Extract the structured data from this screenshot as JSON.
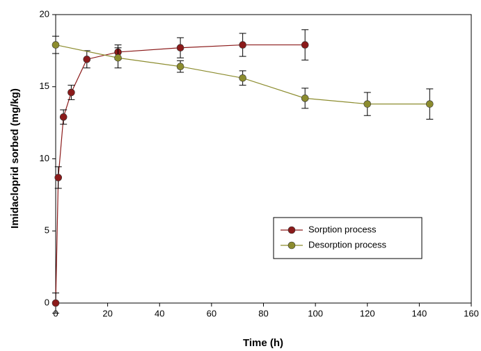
{
  "chart_data": {
    "type": "line",
    "x_label": "Time (h)",
    "y_label": "Imidacloprid sorbed (mg/kg)",
    "xlim": [
      0,
      160
    ],
    "ylim": [
      0,
      20
    ],
    "xticks": [
      0,
      20,
      40,
      60,
      80,
      100,
      120,
      140,
      160
    ],
    "yticks": [
      0,
      5,
      10,
      15,
      20
    ],
    "legend": "lower right",
    "series": [
      {
        "name": "Sorption process",
        "color": "#8b1a1a",
        "x": [
          0,
          1,
          3,
          6,
          12,
          24,
          48,
          72,
          96
        ],
        "values": [
          0,
          8.7,
          12.9,
          14.6,
          16.9,
          17.4,
          17.7,
          17.9,
          17.9
        ],
        "errors": [
          0.7,
          0.75,
          0.5,
          0.5,
          0.6,
          0.5,
          0.7,
          0.8,
          1.05
        ]
      },
      {
        "name": "Desorption process",
        "color": "#8c8c2e",
        "x": [
          0,
          24,
          48,
          72,
          96,
          120,
          144
        ],
        "values": [
          17.9,
          17.0,
          16.4,
          15.6,
          14.2,
          13.8,
          13.8
        ],
        "errors": [
          0.6,
          0.7,
          0.4,
          0.5,
          0.7,
          0.8,
          1.05
        ]
      }
    ]
  }
}
